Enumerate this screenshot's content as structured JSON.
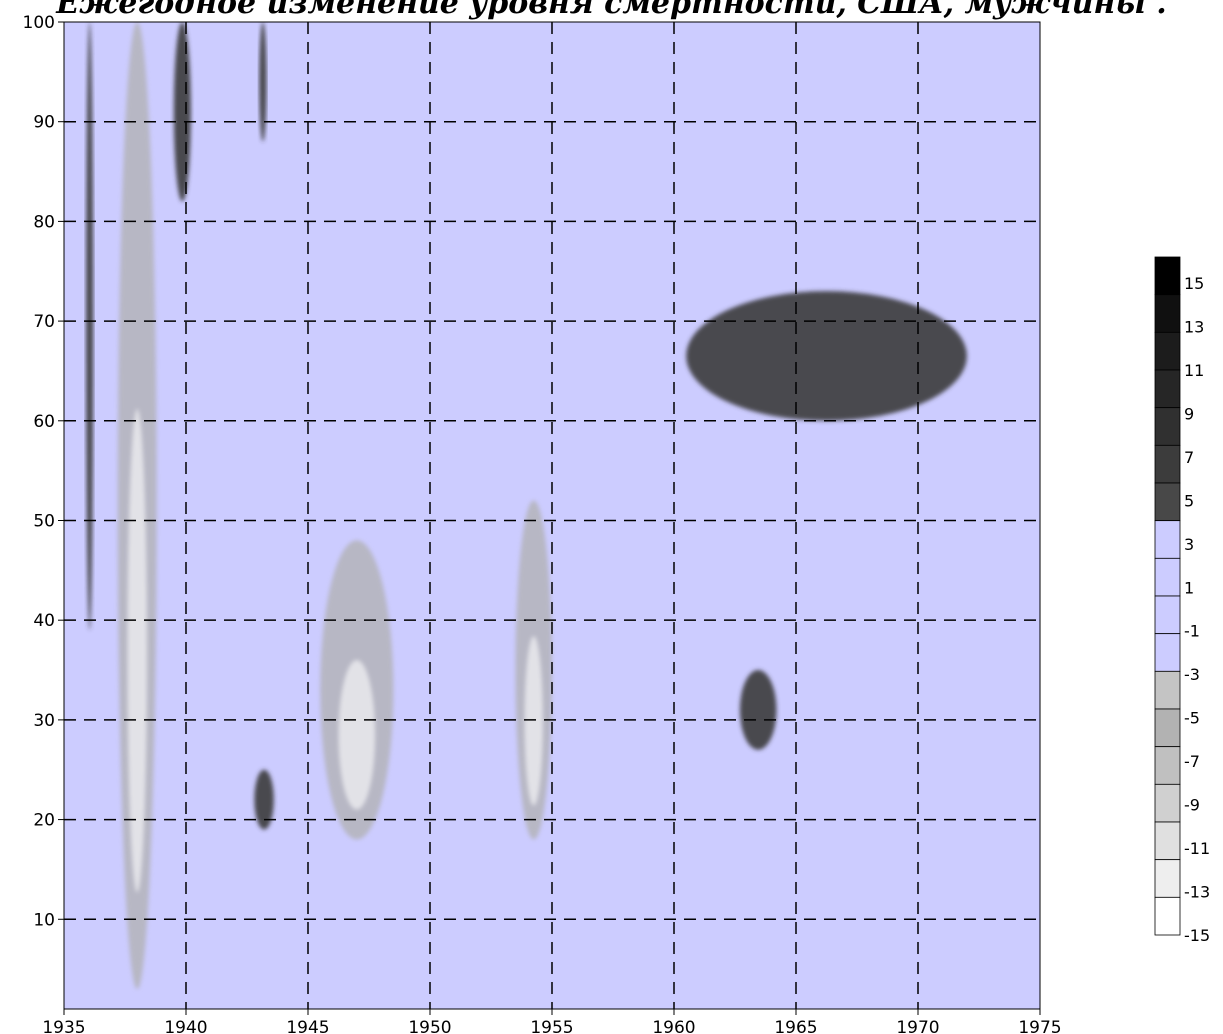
{
  "chart_data": {
    "type": "heatmap",
    "title": "Ежегодное изменение уровня смертности, США, мужчины .",
    "xlabel": "",
    "ylabel": "",
    "xlim": [
      1935,
      1975
    ],
    "ylim": [
      1,
      100
    ],
    "x_ticks": [
      "1935",
      "1940",
      "1945",
      "1950",
      "1955",
      "1960",
      "1965",
      "1970",
      "1975"
    ],
    "y_ticks": [
      "10",
      "20",
      "30",
      "40",
      "50",
      "60",
      "70",
      "80",
      "90",
      "100"
    ],
    "grid": true,
    "colorbar": {
      "levels": [
        15,
        13,
        11,
        9,
        7,
        5,
        3,
        1,
        -1,
        -3,
        -5,
        -7,
        -9,
        -11,
        -13,
        -15
      ],
      "labels": [
        "15",
        "13",
        "11",
        "9",
        "7",
        "5",
        "3",
        "1",
        "-1",
        "-3",
        "-5",
        "-7",
        "-9",
        "-11",
        "-13",
        "-15"
      ],
      "colors": [
        "#000000",
        "#101010",
        "#1c1c1c",
        "#262626",
        "#303030",
        "#3c3c3c",
        "#484848",
        "#ccccff",
        "#ccccff",
        "#ccccff",
        "#ccccff",
        "#c4c4c4",
        "#b2b2b2",
        "#c0c0c0",
        "#d0d0d0",
        "#e0e0e0",
        "#eeeeee",
        "#ffffff"
      ]
    },
    "background_value_range": [
      -3,
      3
    ],
    "colors": {
      "background": "#ccccff",
      "positive": "#3c3c3c",
      "negative": "#b0b0b0",
      "strong_negative": "#ffffff"
    },
    "regions": [
      {
        "sign": "positive",
        "x": [
          1935.9,
          1936.2
        ],
        "y": [
          39,
          100
        ]
      },
      {
        "sign": "positive",
        "x": [
          1939.5,
          1940.2
        ],
        "y": [
          82,
          100
        ]
      },
      {
        "sign": "positive",
        "x": [
          1942.8,
          1943.6
        ],
        "y": [
          19,
          25
        ]
      },
      {
        "sign": "positive",
        "x": [
          1943.0,
          1943.3
        ],
        "y": [
          88,
          100
        ]
      },
      {
        "sign": "negative",
        "x": [
          1937.2,
          1938.8
        ],
        "y": [
          3,
          100
        ]
      },
      {
        "sign": "negative",
        "x": [
          1945.5,
          1948.5
        ],
        "y": [
          18,
          48
        ]
      },
      {
        "sign": "negative",
        "x": [
          1953.5,
          1955.0
        ],
        "y": [
          18,
          52
        ]
      },
      {
        "sign": "positive",
        "x": [
          1962.7,
          1964.2
        ],
        "y": [
          27,
          35
        ]
      },
      {
        "sign": "positive",
        "x": [
          1960.5,
          1972.0
        ],
        "y": [
          60,
          73
        ]
      }
    ]
  }
}
